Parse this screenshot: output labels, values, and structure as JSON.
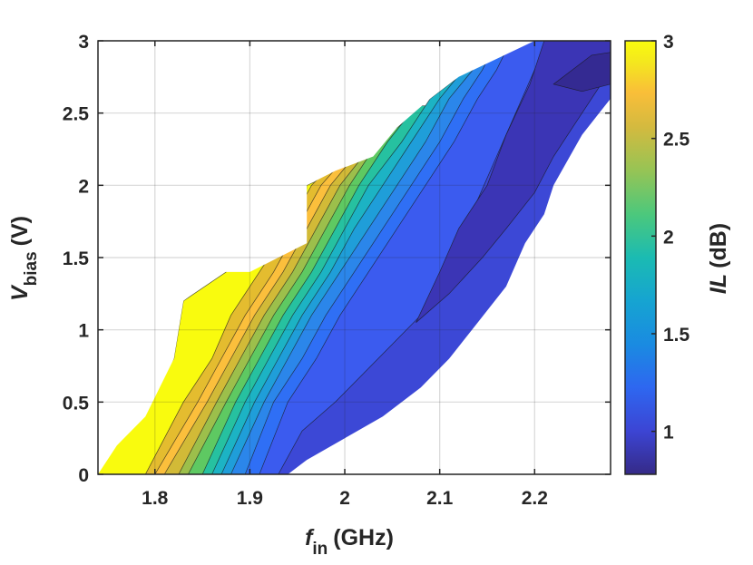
{
  "chart_data": {
    "type": "heatmap",
    "subtype": "filled-contour",
    "xlabel": {
      "symbol": "f",
      "subscript": "in",
      "unit": "(GHz)"
    },
    "ylabel": {
      "symbol": "V",
      "subscript": "bias",
      "unit": "(V)"
    },
    "colorbar_label": {
      "symbol": "IL",
      "unit": "(dB)"
    },
    "xlim": [
      1.74,
      2.28
    ],
    "ylim": [
      0,
      3
    ],
    "clim": [
      0.78,
      3
    ],
    "colormap": "parula",
    "grid": true,
    "x_ticks": [
      {
        "value": 1.8,
        "label": "1.8"
      },
      {
        "value": 1.9,
        "label": "1.9"
      },
      {
        "value": 2.0,
        "label": "2"
      },
      {
        "value": 2.1,
        "label": "2.1"
      },
      {
        "value": 2.2,
        "label": "2.2"
      }
    ],
    "y_ticks": [
      {
        "value": 0,
        "label": "0"
      },
      {
        "value": 0.5,
        "label": "0.5"
      },
      {
        "value": 1,
        "label": "1"
      },
      {
        "value": 1.5,
        "label": "1.5"
      },
      {
        "value": 2,
        "label": "2"
      },
      {
        "value": 2.5,
        "label": "2.5"
      },
      {
        "value": 3,
        "label": "3"
      }
    ],
    "colorbar_ticks": [
      {
        "value": 1,
        "label": "1"
      },
      {
        "value": 1.5,
        "label": "1.5"
      },
      {
        "value": 2,
        "label": "2"
      },
      {
        "value": 2.5,
        "label": "2.5"
      },
      {
        "value": 3,
        "label": "3"
      }
    ],
    "colors": {
      "c3.0": "#f9fb0e",
      "c2.8": "#e4bc2f",
      "c2.6": "#fbbf3c",
      "c2.4": "#d2ba37",
      "c2.2": "#9cbf4b",
      "c2.0": "#5ec962",
      "c1.8": "#26c1a0",
      "c1.6": "#1cb3c4",
      "c1.45": "#1f9ed9",
      "c1.3": "#2b86ea",
      "c1.15": "#2f6ff5",
      "c1.0": "#3b5bef",
      "c0.92": "#3c48d6",
      "c0.85": "#3b35b5",
      "c0.8": "#342a92"
    },
    "contour_bands": [
      {
        "level": 3.0,
        "polygon": [
          [
            1.74,
            0
          ],
          [
            1.755,
            0.2
          ],
          [
            1.78,
            0.4
          ],
          [
            1.82,
            0.8
          ],
          [
            1.83,
            1.2
          ],
          [
            1.875,
            1.4
          ],
          [
            1.895,
            1.6
          ],
          [
            1.925,
            1.8
          ],
          [
            1.955,
            1.6
          ],
          [
            1.96,
            2.0
          ],
          [
            2.03,
            2.2
          ],
          [
            2.2,
            2.5
          ],
          [
            2.28,
            2.6
          ],
          [
            2.28,
            0
          ],
          [
            1.74,
            0
          ]
        ]
      },
      {
        "level": 2.8,
        "polygon": [
          [
            1.79,
            0
          ],
          [
            1.83,
            0.5
          ],
          [
            1.86,
            0.8
          ],
          [
            1.88,
            1.1
          ],
          [
            1.91,
            1.4
          ],
          [
            1.94,
            1.7
          ],
          [
            1.965,
            2.0
          ],
          [
            1.98,
            2.1
          ],
          [
            2.04,
            2.2
          ],
          [
            2.2,
            2.5
          ],
          [
            2.28,
            2.6
          ],
          [
            2.28,
            0
          ],
          [
            1.79,
            0
          ]
        ]
      },
      {
        "level": 2.6,
        "polygon": [
          [
            1.8,
            0
          ],
          [
            1.845,
            0.5
          ],
          [
            1.87,
            0.8
          ],
          [
            1.895,
            1.1
          ],
          [
            1.925,
            1.4
          ],
          [
            1.95,
            1.7
          ],
          [
            1.975,
            2.0
          ],
          [
            1.995,
            2.15
          ],
          [
            2.05,
            2.25
          ],
          [
            2.2,
            2.5
          ],
          [
            2.28,
            2.6
          ],
          [
            2.28,
            0
          ],
          [
            1.8,
            0
          ]
        ]
      },
      {
        "level": 2.4,
        "polygon": [
          [
            1.81,
            0
          ],
          [
            1.855,
            0.5
          ],
          [
            1.88,
            0.8
          ],
          [
            1.905,
            1.1
          ],
          [
            1.935,
            1.4
          ],
          [
            1.96,
            1.7
          ],
          [
            1.985,
            2.0
          ],
          [
            2.01,
            2.2
          ],
          [
            2.055,
            2.3
          ],
          [
            2.2,
            2.5
          ],
          [
            2.28,
            2.6
          ],
          [
            2.28,
            0
          ],
          [
            1.81,
            0
          ]
        ]
      },
      {
        "level": 2.2,
        "polygon": [
          [
            1.825,
            0
          ],
          [
            1.865,
            0.5
          ],
          [
            1.89,
            0.8
          ],
          [
            1.915,
            1.1
          ],
          [
            1.945,
            1.4
          ],
          [
            1.97,
            1.7
          ],
          [
            1.995,
            2.0
          ],
          [
            2.025,
            2.25
          ],
          [
            2.06,
            2.35
          ],
          [
            2.2,
            2.5
          ],
          [
            2.28,
            2.6
          ],
          [
            2.28,
            0
          ],
          [
            1.825,
            0
          ]
        ]
      },
      {
        "level": 2.0,
        "polygon": [
          [
            1.835,
            0
          ],
          [
            1.875,
            0.5
          ],
          [
            1.9,
            0.8
          ],
          [
            1.925,
            1.1
          ],
          [
            1.955,
            1.4
          ],
          [
            1.98,
            1.7
          ],
          [
            2.005,
            2.0
          ],
          [
            2.035,
            2.3
          ],
          [
            2.065,
            2.45
          ],
          [
            2.2,
            2.5
          ],
          [
            2.28,
            2.6
          ],
          [
            2.28,
            0
          ],
          [
            1.835,
            0
          ]
        ]
      },
      {
        "level": 1.8,
        "polygon": [
          [
            1.85,
            0
          ],
          [
            1.885,
            0.5
          ],
          [
            1.91,
            0.8
          ],
          [
            1.935,
            1.1
          ],
          [
            1.965,
            1.4
          ],
          [
            1.99,
            1.7
          ],
          [
            2.015,
            2.0
          ],
          [
            2.045,
            2.3
          ],
          [
            2.075,
            2.55
          ],
          [
            2.2,
            2.55
          ],
          [
            2.28,
            2.6
          ],
          [
            2.28,
            0
          ],
          [
            1.85,
            0
          ]
        ]
      },
      {
        "level": 1.6,
        "polygon": [
          [
            1.86,
            0
          ],
          [
            1.895,
            0.5
          ],
          [
            1.92,
            0.8
          ],
          [
            1.945,
            1.1
          ],
          [
            1.975,
            1.4
          ],
          [
            2.0,
            1.7
          ],
          [
            2.025,
            2.0
          ],
          [
            2.06,
            2.3
          ],
          [
            2.09,
            2.6
          ],
          [
            2.12,
            2.75
          ],
          [
            2.28,
            2.75
          ],
          [
            2.28,
            0
          ],
          [
            1.86,
            0
          ]
        ]
      },
      {
        "level": 1.45,
        "polygon": [
          [
            1.87,
            0
          ],
          [
            1.905,
            0.5
          ],
          [
            1.93,
            0.8
          ],
          [
            1.955,
            1.1
          ],
          [
            1.985,
            1.4
          ],
          [
            2.01,
            1.7
          ],
          [
            2.04,
            2.0
          ],
          [
            2.07,
            2.3
          ],
          [
            2.1,
            2.6
          ],
          [
            2.125,
            2.8
          ],
          [
            2.14,
            3.0
          ],
          [
            2.28,
            3.0
          ],
          [
            2.28,
            0
          ],
          [
            1.87,
            0
          ]
        ]
      },
      {
        "level": 1.3,
        "polygon": [
          [
            1.88,
            0
          ],
          [
            1.915,
            0.5
          ],
          [
            1.94,
            0.8
          ],
          [
            1.965,
            1.1
          ],
          [
            1.995,
            1.4
          ],
          [
            2.025,
            1.7
          ],
          [
            2.055,
            2.0
          ],
          [
            2.085,
            2.3
          ],
          [
            2.11,
            2.6
          ],
          [
            2.135,
            2.8
          ],
          [
            2.15,
            3.0
          ],
          [
            2.28,
            3.0
          ],
          [
            2.28,
            0
          ],
          [
            1.88,
            0
          ]
        ]
      },
      {
        "level": 1.15,
        "polygon": [
          [
            1.895,
            0
          ],
          [
            1.925,
            0.5
          ],
          [
            1.955,
            0.8
          ],
          [
            1.98,
            1.1
          ],
          [
            2.01,
            1.4
          ],
          [
            2.04,
            1.7
          ],
          [
            2.07,
            2.0
          ],
          [
            2.1,
            2.3
          ],
          [
            2.125,
            2.6
          ],
          [
            2.145,
            2.8
          ],
          [
            2.16,
            3.0
          ],
          [
            2.28,
            3.0
          ],
          [
            2.28,
            0
          ],
          [
            1.895,
            0
          ]
        ]
      },
      {
        "level": 1.0,
        "polygon": [
          [
            1.91,
            0
          ],
          [
            1.94,
            0.5
          ],
          [
            1.97,
            0.8
          ],
          [
            1.995,
            1.1
          ],
          [
            2.025,
            1.4
          ],
          [
            2.055,
            1.7
          ],
          [
            2.085,
            2.0
          ],
          [
            2.115,
            2.3
          ],
          [
            2.14,
            2.6
          ],
          [
            2.16,
            2.8
          ],
          [
            2.175,
            3.0
          ],
          [
            2.28,
            3.0
          ],
          [
            2.28,
            0
          ],
          [
            1.91,
            0
          ]
        ]
      },
      {
        "level": 0.92,
        "polygon": [
          [
            1.93,
            0
          ],
          [
            1.955,
            0.3
          ],
          [
            1.99,
            0.5
          ],
          [
            2.02,
            0.7
          ],
          [
            2.05,
            0.9
          ],
          [
            2.08,
            1.1
          ],
          [
            2.1,
            1.3
          ],
          [
            2.12,
            1.6
          ],
          [
            2.14,
            1.9
          ],
          [
            2.16,
            2.2
          ],
          [
            2.18,
            2.5
          ],
          [
            2.2,
            2.8
          ],
          [
            2.22,
            3.0
          ],
          [
            2.28,
            3.0
          ],
          [
            2.28,
            0
          ],
          [
            1.93,
            0
          ]
        ]
      },
      {
        "level": 0.85,
        "polygon": [
          [
            2.075,
            1.05
          ],
          [
            2.11,
            1.25
          ],
          [
            2.145,
            1.5
          ],
          [
            2.17,
            1.7
          ],
          [
            2.2,
            1.95
          ],
          [
            2.22,
            2.2
          ],
          [
            2.24,
            2.4
          ],
          [
            2.26,
            2.6
          ],
          [
            2.28,
            2.8
          ],
          [
            2.28,
            3.0
          ],
          [
            2.21,
            3.0
          ],
          [
            2.195,
            2.7
          ],
          [
            2.17,
            2.35
          ],
          [
            2.15,
            2.0
          ],
          [
            2.12,
            1.7
          ],
          [
            2.1,
            1.4
          ],
          [
            2.075,
            1.05
          ]
        ]
      },
      {
        "level": 0.8,
        "polygon": [
          [
            2.22,
            2.7
          ],
          [
            2.24,
            2.8
          ],
          [
            2.26,
            2.9
          ],
          [
            2.28,
            2.92
          ],
          [
            2.28,
            2.7
          ],
          [
            2.25,
            2.65
          ],
          [
            2.22,
            2.7
          ]
        ]
      }
    ],
    "blank_region": {
      "upper_left": [
        [
          1.74,
          0
        ],
        [
          1.74,
          3
        ],
        [
          2.23,
          3
        ],
        [
          2.2,
          3
        ],
        [
          2.12,
          2.75
        ],
        [
          2.09,
          2.6
        ],
        [
          2.055,
          2.4
        ],
        [
          2.03,
          2.2
        ],
        [
          1.99,
          2.1
        ],
        [
          1.96,
          2.0
        ],
        [
          1.96,
          1.6
        ],
        [
          1.9,
          1.4
        ],
        [
          1.87,
          1.4
        ],
        [
          1.83,
          1.2
        ],
        [
          1.82,
          0.8
        ],
        [
          1.79,
          0.4
        ],
        [
          1.76,
          0.2
        ],
        [
          1.74,
          0
        ]
      ],
      "lower_right": [
        [
          1.94,
          0
        ],
        [
          2.28,
          0
        ],
        [
          2.28,
          2.6
        ],
        [
          2.25,
          2.35
        ],
        [
          2.22,
          2.0
        ],
        [
          2.21,
          1.8
        ],
        [
          2.19,
          1.6
        ],
        [
          2.17,
          1.3
        ],
        [
          2.14,
          1.05
        ],
        [
          2.11,
          0.8
        ],
        [
          2.08,
          0.6
        ],
        [
          2.04,
          0.4
        ],
        [
          2.0,
          0.25
        ],
        [
          1.96,
          0.1
        ],
        [
          1.94,
          0
        ]
      ]
    }
  }
}
